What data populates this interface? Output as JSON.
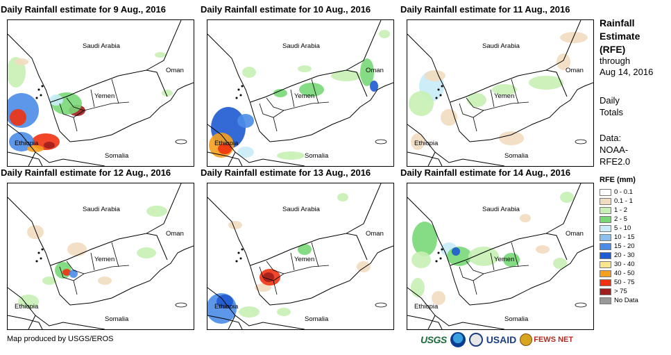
{
  "panels": [
    {
      "title": "Daily Rainfall estimate for 9 Aug., 2016"
    },
    {
      "title": "Daily Rainfall estimate for 10 Aug., 2016"
    },
    {
      "title": "Daily Rainfall estimate for 11 Aug., 2016"
    },
    {
      "title": "Daily Rainfall estimate for 12 Aug., 2016"
    },
    {
      "title": "Daily Rainfall estimate for 13 Aug., 2016"
    },
    {
      "title": "Daily Rainfall estimate for 14 Aug., 2016"
    }
  ],
  "map_labels": {
    "saudi_arabia": "Saudi Arabia",
    "oman": "Oman",
    "yemen": "Yemen",
    "ethiopia": "Ethiopia",
    "somalia": "Somalia"
  },
  "sidebar": {
    "title_line1": "Rainfall",
    "title_line2": "Estimate",
    "title_line3": "(RFE)",
    "through_line1": "through",
    "through_line2": "Aug 14, 2016",
    "daily_line1": "Daily",
    "daily_line2": "Totals",
    "data_line1": "Data:",
    "data_line2": "NOAA-",
    "data_line3": "RFE2.0"
  },
  "legend": {
    "title": "RFE (mm)",
    "items": [
      {
        "label": "0 - 0.1",
        "color": "#ffffff"
      },
      {
        "label": "0.1 - 1",
        "color": "#f2dcc0"
      },
      {
        "label": "1 - 2",
        "color": "#c8f0b4"
      },
      {
        "label": "2 - 5",
        "color": "#78d878"
      },
      {
        "label": "5 - 10",
        "color": "#c8ecf8"
      },
      {
        "label": "10 - 15",
        "color": "#8cc0ec"
      },
      {
        "label": "15 - 20",
        "color": "#4a8ce8"
      },
      {
        "label": "20 - 30",
        "color": "#1e5ad2"
      },
      {
        "label": "30 - 40",
        "color": "#fae68c"
      },
      {
        "label": "40 - 50",
        "color": "#f5a01e"
      },
      {
        "label": "50 - 75",
        "color": "#f03210"
      },
      {
        "label": "> 75",
        "color": "#a01e1e"
      },
      {
        "label": "No Data",
        "color": "#999999"
      }
    ]
  },
  "footer": {
    "credit": "Map produced by USGS/EROS"
  },
  "logos": {
    "usgs": "USGS",
    "usaid": "USAID",
    "fews": "FEWS NET"
  }
}
